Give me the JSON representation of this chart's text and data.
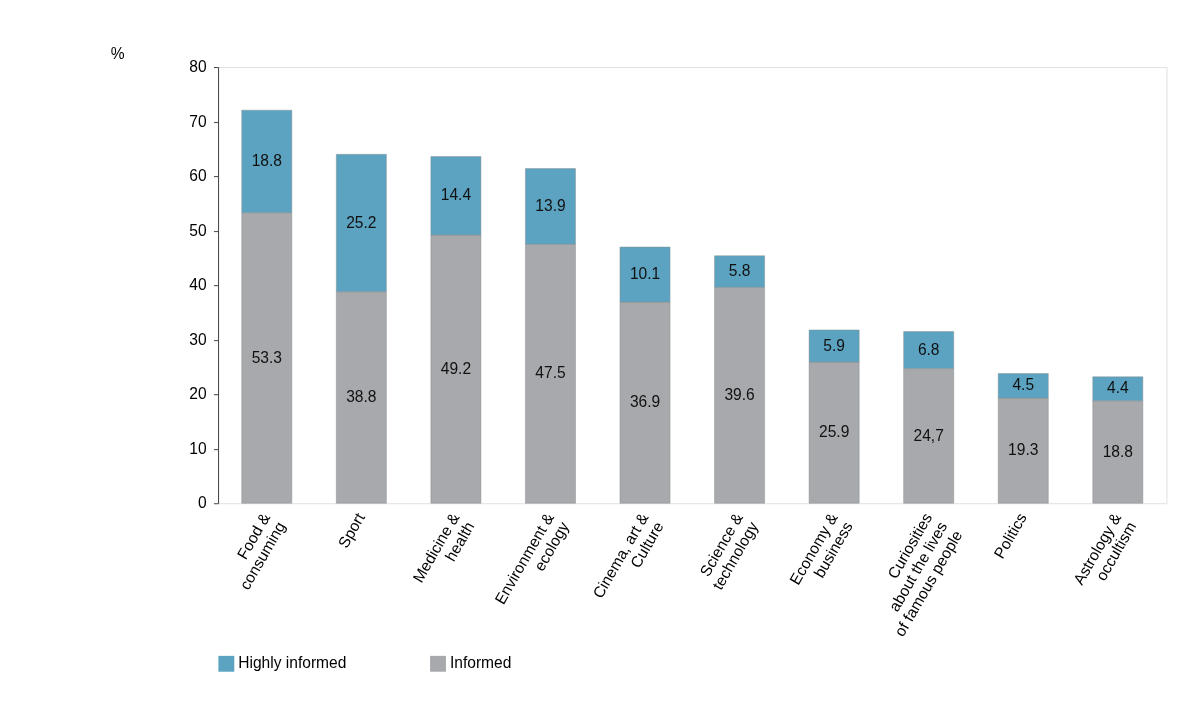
{
  "chart_data": {
    "type": "bar",
    "stacked": true,
    "ylabel": "%",
    "categories": [
      "Food &\nconsuming",
      "Sport",
      "Medicine &\nhealth",
      "Environment &\necology",
      "Cinema, art &\nCulture",
      "Science &\ntechnology",
      "Economy &\nbusiness",
      "Curiosities\nabout the lives\nof famous people",
      "Politics",
      "Astrology &\noccultism"
    ],
    "series": [
      {
        "name": "Informed",
        "color": "#a7a9ac",
        "values": [
          53.3,
          38.8,
          49.2,
          47.5,
          36.9,
          39.6,
          25.9,
          24.7,
          19.3,
          18.8
        ],
        "value_labels": [
          "53.3",
          "38.8",
          "49.2",
          "47.5",
          "36.9",
          "39.6",
          "25.9",
          "24,7",
          "19.3",
          "18.8"
        ]
      },
      {
        "name": "Highly informed",
        "color": "#5ba3c0",
        "values": [
          18.8,
          25.2,
          14.4,
          13.9,
          10.1,
          5.8,
          5.9,
          6.8,
          4.5,
          4.4
        ],
        "value_labels": [
          "18.8",
          "25.2",
          "14.4",
          "13.9",
          "10.1",
          "5.8",
          "5.9",
          "6.8",
          "4.5",
          "4.4"
        ]
      }
    ],
    "ylim": [
      0,
      80
    ],
    "yticks": [
      0,
      10,
      20,
      30,
      40,
      50,
      60,
      70,
      80
    ],
    "legend": "bottom",
    "grid": false
  }
}
